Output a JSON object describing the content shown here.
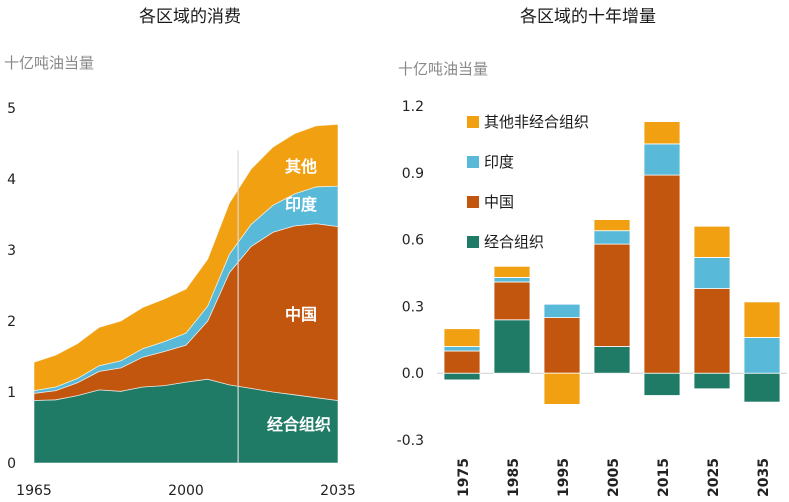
{
  "colors": {
    "oecd": "#1f7a66",
    "china": "#c2560e",
    "india": "#58b9d8",
    "other": "#f0a010"
  },
  "chart_data": [
    {
      "type": "area",
      "title": "各区域的消费",
      "unit": "十亿吨油当量",
      "xlim": [
        1965,
        2035
      ],
      "ylim": [
        0,
        5
      ],
      "yticks": [
        "0",
        "1",
        "2",
        "3",
        "4",
        "5"
      ],
      "xticks": [
        "1965",
        "2000",
        "2035"
      ],
      "x": [
        1965,
        1970,
        1975,
        1980,
        1985,
        1990,
        1995,
        2000,
        2005,
        2010,
        2015,
        2020,
        2025,
        2030,
        2035
      ],
      "series": [
        {
          "name": "经合组织",
          "values": [
            0.88,
            0.89,
            0.95,
            1.03,
            1.01,
            1.07,
            1.09,
            1.14,
            1.18,
            1.1,
            1.05,
            1.0,
            0.96,
            0.92,
            0.88
          ]
        },
        {
          "name": "中国",
          "values": [
            0.1,
            0.13,
            0.18,
            0.26,
            0.33,
            0.42,
            0.48,
            0.52,
            0.82,
            1.58,
            2.0,
            2.25,
            2.38,
            2.45,
            2.45
          ]
        },
        {
          "name": "印度",
          "values": [
            0.04,
            0.05,
            0.06,
            0.08,
            0.1,
            0.12,
            0.14,
            0.17,
            0.21,
            0.26,
            0.31,
            0.38,
            0.45,
            0.52,
            0.57
          ]
        },
        {
          "name": "其他",
          "values": [
            0.4,
            0.45,
            0.49,
            0.54,
            0.56,
            0.58,
            0.6,
            0.62,
            0.66,
            0.72,
            0.78,
            0.82,
            0.85,
            0.86,
            0.87
          ]
        }
      ],
      "area_labels": [
        "其他",
        "印度",
        "中国",
        "经合组织"
      ],
      "divider_x": 2012
    },
    {
      "type": "bar",
      "title": "各区域的十年增量",
      "unit": "十亿吨油当量",
      "ylim": [
        -0.3,
        1.2
      ],
      "yticks": [
        "1.2",
        "0.9",
        "0.6",
        "0.3",
        "0.0",
        "-0.3"
      ],
      "categories": [
        "1975",
        "1985",
        "1995",
        "2005",
        "2015",
        "2025",
        "2035"
      ],
      "legend": [
        "其他非经合组织",
        "印度",
        "中国",
        "经合组织"
      ],
      "series": [
        {
          "name": "经合组织",
          "values": [
            -0.03,
            0.24,
            0.0,
            0.12,
            -0.1,
            -0.07,
            -0.13
          ]
        },
        {
          "name": "中国",
          "values": [
            0.1,
            0.17,
            0.25,
            0.46,
            0.89,
            0.38,
            0.0
          ]
        },
        {
          "name": "印度",
          "values": [
            0.02,
            0.02,
            0.06,
            0.06,
            0.14,
            0.14,
            0.16
          ]
        },
        {
          "name": "其他非经合组织",
          "values": [
            0.08,
            0.05,
            -0.14,
            0.05,
            0.1,
            0.14,
            0.16
          ]
        }
      ]
    }
  ]
}
